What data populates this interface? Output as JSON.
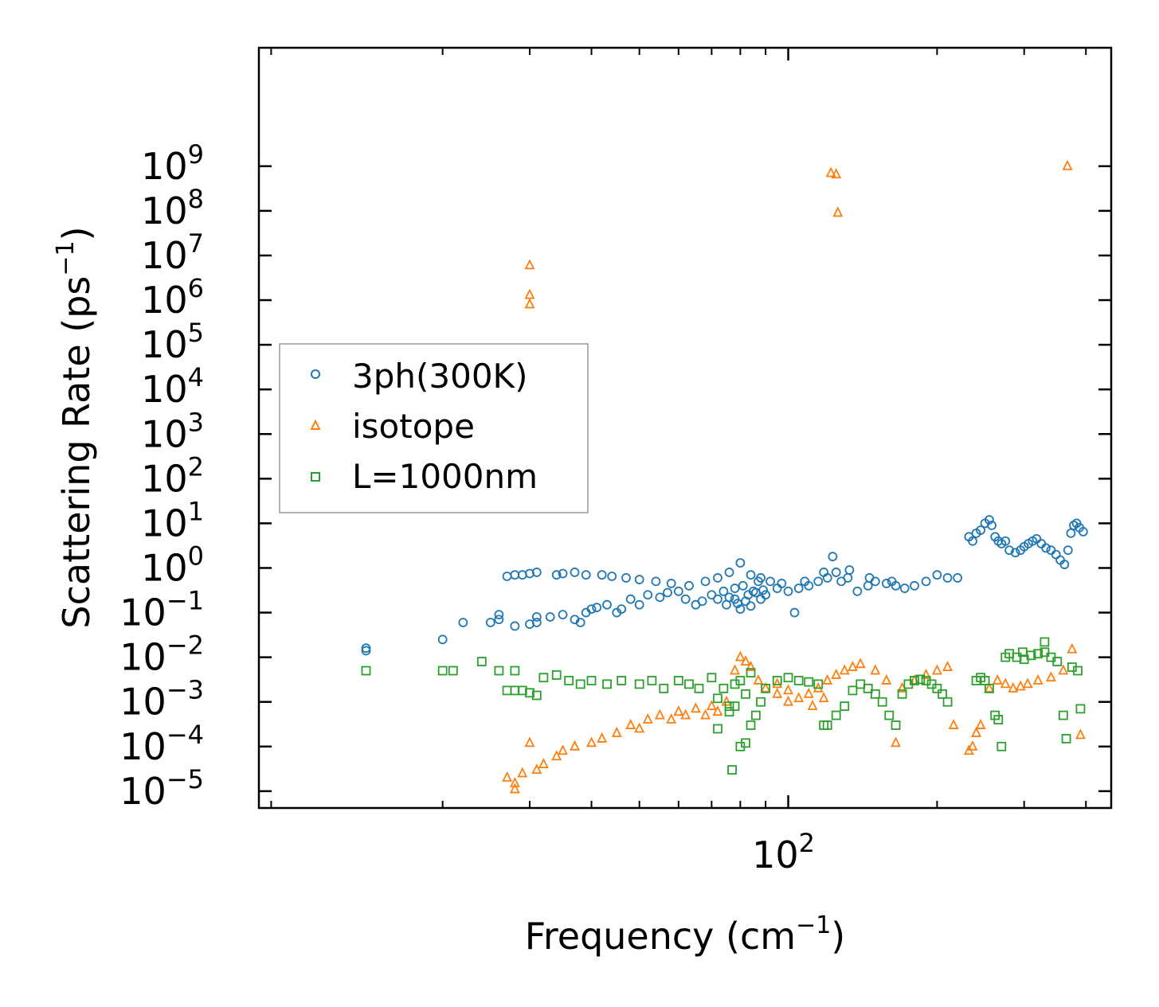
{
  "chart_data": {
    "type": "scatter",
    "title": "",
    "xlabel": "Frequency (cm",
    "xlabel_sup": "−1",
    "xlabel_end": ")",
    "ylabel": "Scattering Rate (ps",
    "ylabel_sup": "−1",
    "ylabel_end": ")",
    "x_scale": "log",
    "y_scale": "log",
    "xlim": [
      8.5,
      450
    ],
    "ylim": [
      4.2e-06,
      450000000000
    ],
    "x_tick_labels": [
      {
        "value": 100,
        "base": "10",
        "exp": "2"
      }
    ],
    "y_tick_labels": [
      {
        "value": 1000000000.0,
        "base": "10",
        "exp": "9"
      },
      {
        "value": 100000000.0,
        "base": "10",
        "exp": "8"
      },
      {
        "value": 10000000.0,
        "base": "10",
        "exp": "7"
      },
      {
        "value": 1000000.0,
        "base": "10",
        "exp": "6"
      },
      {
        "value": 100000.0,
        "base": "10",
        "exp": "5"
      },
      {
        "value": 10000.0,
        "base": "10",
        "exp": "4"
      },
      {
        "value": 1000.0,
        "base": "10",
        "exp": "3"
      },
      {
        "value": 100.0,
        "base": "10",
        "exp": "2"
      },
      {
        "value": 10.0,
        "base": "10",
        "exp": "1"
      },
      {
        "value": 1,
        "base": "10",
        "exp": "0"
      },
      {
        "value": 0.1,
        "base": "10",
        "exp": "−1"
      },
      {
        "value": 0.01,
        "base": "10",
        "exp": "−2"
      },
      {
        "value": 0.001,
        "base": "10",
        "exp": "−3"
      },
      {
        "value": 0.0001,
        "base": "10",
        "exp": "−4"
      },
      {
        "value": 1e-05,
        "base": "10",
        "exp": "−5"
      }
    ],
    "legend_position": "center-left",
    "series": [
      {
        "name": "3ph(300K)",
        "marker": "circle",
        "color": "#1f77b4",
        "points": [
          [
            14,
            0.014
          ],
          [
            14,
            0.016
          ],
          [
            20,
            0.025
          ],
          [
            22,
            0.06
          ],
          [
            25,
            0.06
          ],
          [
            26,
            0.09
          ],
          [
            26,
            0.07
          ],
          [
            28,
            0.05
          ],
          [
            30,
            0.055
          ],
          [
            31,
            0.08
          ],
          [
            31,
            0.06
          ],
          [
            33,
            0.08
          ],
          [
            35,
            0.09
          ],
          [
            37,
            0.07
          ],
          [
            38,
            0.06
          ],
          [
            39,
            0.1
          ],
          [
            40,
            0.12
          ],
          [
            41,
            0.13
          ],
          [
            43,
            0.15
          ],
          [
            45,
            0.1
          ],
          [
            46,
            0.12
          ],
          [
            48,
            0.2
          ],
          [
            50,
            0.15
          ],
          [
            52,
            0.25
          ],
          [
            55,
            0.22
          ],
          [
            57,
            0.28
          ],
          [
            60,
            0.3
          ],
          [
            62,
            0.2
          ],
          [
            65,
            0.15
          ],
          [
            67,
            0.18
          ],
          [
            70,
            0.25
          ],
          [
            72,
            0.2
          ],
          [
            75,
            0.15
          ],
          [
            78,
            0.2
          ],
          [
            80,
            0.12
          ],
          [
            82,
            0.18
          ],
          [
            85,
            0.3
          ],
          [
            88,
            0.2
          ],
          [
            90,
            0.25
          ],
          [
            95,
            0.35
          ],
          [
            100,
            0.3
          ],
          [
            103,
            0.1
          ],
          [
            105,
            0.35
          ],
          [
            110,
            0.4
          ],
          [
            115,
            0.5
          ],
          [
            120,
            0.6
          ],
          [
            123,
            1.8
          ],
          [
            125,
            0.8
          ],
          [
            128,
            0.5
          ],
          [
            132,
            0.6
          ],
          [
            138,
            0.3
          ],
          [
            145,
            0.4
          ],
          [
            150,
            0.5
          ],
          [
            158,
            0.45
          ],
          [
            165,
            0.4
          ],
          [
            172,
            0.35
          ],
          [
            180,
            0.4
          ],
          [
            190,
            0.5
          ],
          [
            200,
            0.7
          ],
          [
            210,
            0.6
          ],
          [
            220,
            0.6
          ],
          [
            27,
            0.65
          ],
          [
            28,
            0.7
          ],
          [
            29,
            0.7
          ],
          [
            30,
            0.75
          ],
          [
            31,
            0.8
          ],
          [
            34,
            0.7
          ],
          [
            35,
            0.75
          ],
          [
            37,
            0.8
          ],
          [
            39,
            0.7
          ],
          [
            42,
            0.7
          ],
          [
            44,
            0.65
          ],
          [
            47,
            0.6
          ],
          [
            50,
            0.55
          ],
          [
            54,
            0.5
          ],
          [
            58,
            0.45
          ],
          [
            63,
            0.4
          ],
          [
            68,
            0.5
          ],
          [
            72,
            0.6
          ],
          [
            76,
            0.8
          ],
          [
            80,
            1.3
          ],
          [
            84,
            0.7
          ],
          [
            88,
            0.6
          ],
          [
            92,
            0.5
          ],
          [
            97,
            0.45
          ],
          [
            108,
            0.5
          ],
          [
            118,
            0.8
          ],
          [
            133,
            0.9
          ],
          [
            146,
            0.6
          ],
          [
            162,
            0.5
          ],
          [
            232,
            5
          ],
          [
            236,
            4
          ],
          [
            240,
            6
          ],
          [
            245,
            7
          ],
          [
            250,
            10
          ],
          [
            255,
            12
          ],
          [
            258,
            9
          ],
          [
            262,
            5
          ],
          [
            266,
            4
          ],
          [
            270,
            3.5
          ],
          [
            275,
            4
          ],
          [
            280,
            2.5
          ],
          [
            288,
            2.2
          ],
          [
            295,
            2.5
          ],
          [
            300,
            3
          ],
          [
            306,
            3.5
          ],
          [
            312,
            4
          ],
          [
            318,
            4.5
          ],
          [
            325,
            3.5
          ],
          [
            332,
            2.8
          ],
          [
            340,
            2.5
          ],
          [
            348,
            2
          ],
          [
            355,
            1.5
          ],
          [
            362,
            1.2
          ],
          [
            368,
            2.5
          ],
          [
            373,
            6
          ],
          [
            378,
            9
          ],
          [
            383,
            10
          ],
          [
            388,
            8
          ],
          [
            395,
            6.5
          ],
          [
            74,
            0.3
          ],
          [
            76,
            0.22
          ],
          [
            78,
            0.35
          ],
          [
            79,
            0.16
          ],
          [
            81,
            0.4
          ],
          [
            83,
            0.25
          ],
          [
            84,
            0.14
          ],
          [
            86,
            0.28
          ],
          [
            87,
            0.5
          ],
          [
            89,
            0.32
          ]
        ]
      },
      {
        "name": "isotope",
        "marker": "triangle",
        "color": "#ff7f0e",
        "points": [
          [
            30,
            1300000
          ],
          [
            30,
            800000
          ],
          [
            30,
            6000000
          ],
          [
            122,
            700000000
          ],
          [
            125,
            650000000
          ],
          [
            126,
            90000000
          ],
          [
            367,
            1000000000
          ],
          [
            27,
            2e-05
          ],
          [
            28,
            1.5e-05
          ],
          [
            28,
            1.1e-05
          ],
          [
            29,
            2.5e-05
          ],
          [
            30,
            0.00012
          ],
          [
            31,
            3e-05
          ],
          [
            32,
            4e-05
          ],
          [
            34,
            6e-05
          ],
          [
            35,
            8e-05
          ],
          [
            37,
            0.0001
          ],
          [
            40,
            0.00012
          ],
          [
            42,
            0.00015
          ],
          [
            45,
            0.0002
          ],
          [
            48,
            0.0003
          ],
          [
            52,
            0.0004
          ],
          [
            55,
            0.0005
          ],
          [
            60,
            0.0006
          ],
          [
            65,
            0.0007
          ],
          [
            70,
            0.0008
          ],
          [
            75,
            0.001
          ],
          [
            78,
            0.005
          ],
          [
            80,
            0.01
          ],
          [
            82,
            0.008
          ],
          [
            84,
            0.006
          ],
          [
            87,
            0.003
          ],
          [
            90,
            0.002
          ],
          [
            95,
            0.0015
          ],
          [
            100,
            0.001
          ],
          [
            105,
            0.0012
          ],
          [
            110,
            0.0015
          ],
          [
            115,
            0.002
          ],
          [
            120,
            0.003
          ],
          [
            125,
            0.004
          ],
          [
            130,
            0.005
          ],
          [
            135,
            0.006
          ],
          [
            140,
            0.007
          ],
          [
            150,
            0.005
          ],
          [
            158,
            0.003
          ],
          [
            165,
            0.00012
          ],
          [
            170,
            0.002
          ],
          [
            180,
            0.003
          ],
          [
            190,
            0.004
          ],
          [
            200,
            0.005
          ],
          [
            210,
            0.006
          ],
          [
            216,
            0.0003
          ],
          [
            232,
            8e-05
          ],
          [
            236,
            0.0001
          ],
          [
            240,
            0.0002
          ],
          [
            245,
            0.0003
          ],
          [
            255,
            0.002
          ],
          [
            265,
            0.003
          ],
          [
            275,
            0.0025
          ],
          [
            285,
            0.002
          ],
          [
            295,
            0.0022
          ],
          [
            305,
            0.0025
          ],
          [
            320,
            0.003
          ],
          [
            340,
            0.0035
          ],
          [
            360,
            0.005
          ],
          [
            375,
            0.015
          ],
          [
            390,
            0.00018
          ],
          [
            95,
            0.0025
          ],
          [
            100,
            0.0018
          ],
          [
            112,
            0.0008
          ],
          [
            118,
            0.0012
          ],
          [
            68,
            0.0005
          ],
          [
            72,
            0.0006
          ],
          [
            50,
            0.00025
          ],
          [
            58,
            0.0004
          ],
          [
            62,
            0.0005
          ]
        ]
      },
      {
        "name": "L=1000nm",
        "marker": "square",
        "color": "#2ca02c",
        "points": [
          [
            14,
            0.005
          ],
          [
            20,
            0.005
          ],
          [
            21,
            0.005
          ],
          [
            24,
            0.008
          ],
          [
            26,
            0.005
          ],
          [
            28,
            0.005
          ],
          [
            27,
            0.0018
          ],
          [
            28,
            0.0018
          ],
          [
            29,
            0.0018
          ],
          [
            30,
            0.0016
          ],
          [
            31,
            0.0014
          ],
          [
            32,
            0.0035
          ],
          [
            34,
            0.004
          ],
          [
            36,
            0.003
          ],
          [
            38,
            0.0025
          ],
          [
            40,
            0.003
          ],
          [
            43,
            0.0025
          ],
          [
            46,
            0.003
          ],
          [
            50,
            0.0025
          ],
          [
            53,
            0.003
          ],
          [
            56,
            0.002
          ],
          [
            60,
            0.003
          ],
          [
            63,
            0.0025
          ],
          [
            66,
            0.002
          ],
          [
            70,
            0.0035
          ],
          [
            72,
            0.0012
          ],
          [
            74,
            0.002
          ],
          [
            76,
            0.0006
          ],
          [
            78,
            0.0008
          ],
          [
            80,
            0.0001
          ],
          [
            82,
            0.00012
          ],
          [
            84,
            0.0003
          ],
          [
            86,
            0.0005
          ],
          [
            88,
            0.001
          ],
          [
            90,
            0.002
          ],
          [
            95,
            0.003
          ],
          [
            100,
            0.0035
          ],
          [
            105,
            0.003
          ],
          [
            110,
            0.0028
          ],
          [
            115,
            0.0025
          ],
          [
            118,
            0.0003
          ],
          [
            120,
            0.0003
          ],
          [
            125,
            0.0005
          ],
          [
            130,
            0.0008
          ],
          [
            135,
            0.0018
          ],
          [
            140,
            0.0025
          ],
          [
            145,
            0.002
          ],
          [
            150,
            0.0015
          ],
          [
            155,
            0.001
          ],
          [
            160,
            0.0005
          ],
          [
            165,
            0.0003
          ],
          [
            170,
            0.0015
          ],
          [
            175,
            0.0025
          ],
          [
            180,
            0.003
          ],
          [
            185,
            0.0032
          ],
          [
            190,
            0.003
          ],
          [
            195,
            0.0025
          ],
          [
            200,
            0.002
          ],
          [
            205,
            0.0015
          ],
          [
            210,
            0.001
          ],
          [
            240,
            0.003
          ],
          [
            245,
            0.0035
          ],
          [
            250,
            0.003
          ],
          [
            255,
            0.002
          ],
          [
            262,
            0.0005
          ],
          [
            266,
            0.0004
          ],
          [
            270,
            0.0001
          ],
          [
            275,
            0.01
          ],
          [
            280,
            0.012
          ],
          [
            290,
            0.01
          ],
          [
            300,
            0.009
          ],
          [
            310,
            0.011
          ],
          [
            320,
            0.012
          ],
          [
            330,
            0.013
          ],
          [
            340,
            0.01
          ],
          [
            350,
            0.008
          ],
          [
            360,
            0.0005
          ],
          [
            365,
            0.00015
          ],
          [
            375,
            0.006
          ],
          [
            385,
            0.005
          ],
          [
            390,
            0.0007
          ],
          [
            330,
            0.022
          ],
          [
            298,
            0.013
          ],
          [
            76,
            0.0008
          ],
          [
            78,
            0.0025
          ],
          [
            80,
            0.003
          ],
          [
            82,
            0.0015
          ],
          [
            84,
            0.0045
          ],
          [
            72,
            0.00025
          ],
          [
            77,
            3e-05
          ]
        ]
      }
    ]
  }
}
